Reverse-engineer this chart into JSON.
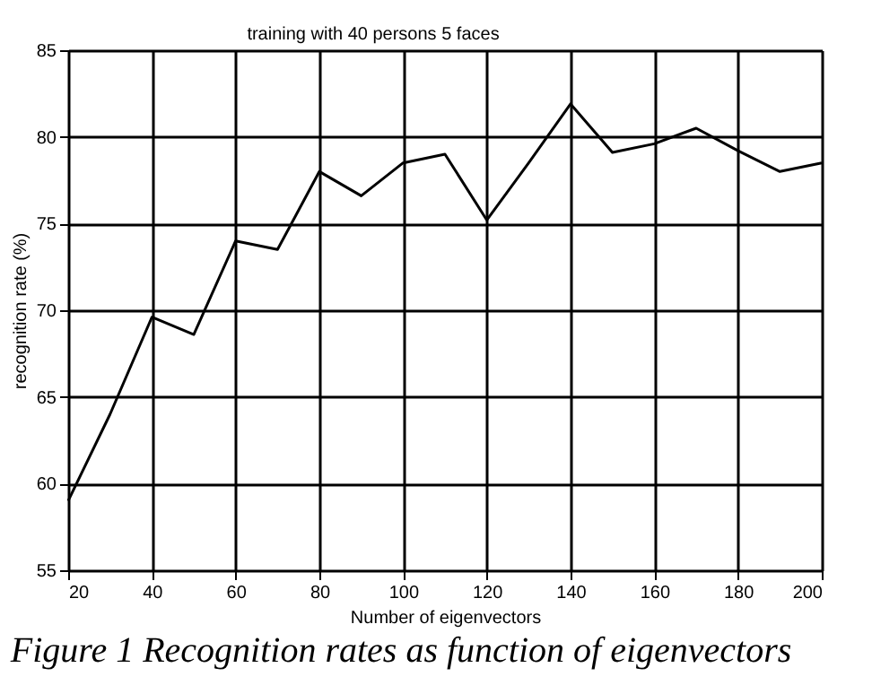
{
  "chart_data": {
    "type": "line",
    "title": "training with 40 persons 5 faces",
    "xlabel": "Number of eigenvectors",
    "ylabel": "recognition rate (%)",
    "x": [
      20,
      30,
      40,
      50,
      60,
      70,
      80,
      90,
      100,
      110,
      120,
      130,
      140,
      150,
      160,
      170,
      180,
      190,
      200
    ],
    "series": [
      {
        "color": "#000000",
        "values": [
          59,
          64,
          69.6,
          68.6,
          74,
          73.5,
          78,
          76.6,
          78.5,
          79,
          75.2,
          78.5,
          81.9,
          79.1,
          79.6,
          80.5,
          79.2,
          78,
          78.5
        ]
      }
    ],
    "xlim": [
      20,
      200
    ],
    "xticks": [
      20,
      40,
      60,
      80,
      100,
      120,
      140,
      160,
      180,
      200
    ],
    "ylim": [
      55,
      85
    ],
    "yticks": [
      55,
      60,
      65,
      70,
      75,
      80,
      85
    ],
    "grid": true,
    "marker": "none",
    "line_style": "solid",
    "annotations": [
      "Figure 1 Recognition rates as function of eigenvectors"
    ]
  }
}
